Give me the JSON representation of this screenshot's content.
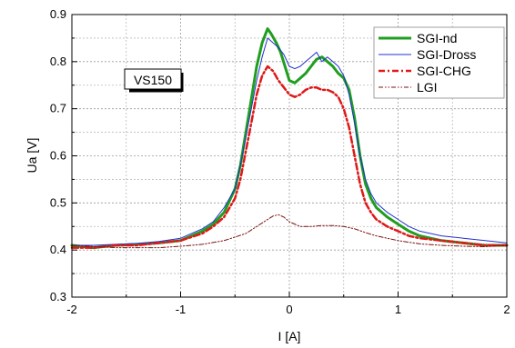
{
  "chart_data": {
    "type": "line",
    "title": "",
    "xlabel": "I [A]",
    "ylabel": "Ua [V]",
    "xlim": [
      -2,
      2
    ],
    "ylim": [
      0.3,
      0.9
    ],
    "xticks": [
      "-2",
      "-1",
      "0",
      "1",
      "2"
    ],
    "yticks": [
      "0.3",
      "0.4",
      "0.5",
      "0.6",
      "0.7",
      "0.8",
      "0.9"
    ],
    "grid": true,
    "legend_position": "top-right",
    "annotation": "VS150",
    "series": [
      {
        "name": "SGI-nd",
        "color": "#1f9e1f",
        "style": "solid-thick",
        "x": [
          -2.0,
          -1.8,
          -1.6,
          -1.4,
          -1.2,
          -1.0,
          -0.8,
          -0.7,
          -0.6,
          -0.5,
          -0.45,
          -0.4,
          -0.35,
          -0.3,
          -0.25,
          -0.2,
          -0.17,
          -0.12,
          -0.08,
          -0.04,
          0.0,
          0.05,
          0.1,
          0.15,
          0.2,
          0.25,
          0.3,
          0.35,
          0.4,
          0.45,
          0.5,
          0.55,
          0.6,
          0.65,
          0.7,
          0.75,
          0.8,
          0.9,
          1.0,
          1.1,
          1.2,
          1.4,
          1.6,
          1.8,
          2.0
        ],
        "y": [
          0.41,
          0.405,
          0.41,
          0.412,
          0.415,
          0.42,
          0.44,
          0.455,
          0.48,
          0.53,
          0.58,
          0.65,
          0.72,
          0.79,
          0.84,
          0.87,
          0.86,
          0.84,
          0.82,
          0.79,
          0.76,
          0.755,
          0.765,
          0.775,
          0.79,
          0.805,
          0.81,
          0.8,
          0.79,
          0.775,
          0.765,
          0.74,
          0.68,
          0.6,
          0.54,
          0.51,
          0.49,
          0.47,
          0.455,
          0.44,
          0.43,
          0.42,
          0.415,
          0.41,
          0.41
        ]
      },
      {
        "name": "SGI-Dross",
        "color": "#2030d0",
        "style": "solid-thin",
        "x": [
          -2.0,
          -1.8,
          -1.6,
          -1.4,
          -1.2,
          -1.0,
          -0.8,
          -0.7,
          -0.6,
          -0.5,
          -0.45,
          -0.4,
          -0.35,
          -0.3,
          -0.25,
          -0.2,
          -0.15,
          -0.1,
          -0.05,
          0.0,
          0.05,
          0.1,
          0.15,
          0.2,
          0.25,
          0.3,
          0.35,
          0.4,
          0.45,
          0.5,
          0.55,
          0.6,
          0.65,
          0.7,
          0.75,
          0.8,
          0.9,
          1.0,
          1.1,
          1.2,
          1.4,
          1.6,
          1.8,
          2.0
        ],
        "y": [
          0.41,
          0.41,
          0.412,
          0.414,
          0.418,
          0.425,
          0.445,
          0.46,
          0.49,
          0.53,
          0.58,
          0.64,
          0.7,
          0.76,
          0.81,
          0.85,
          0.84,
          0.83,
          0.815,
          0.79,
          0.785,
          0.79,
          0.8,
          0.81,
          0.82,
          0.8,
          0.81,
          0.8,
          0.79,
          0.77,
          0.73,
          0.67,
          0.6,
          0.55,
          0.52,
          0.5,
          0.48,
          0.465,
          0.45,
          0.44,
          0.43,
          0.425,
          0.42,
          0.415
        ]
      },
      {
        "name": "SGI-CHG",
        "color": "#e01818",
        "style": "dash-dot",
        "x": [
          -2.0,
          -1.8,
          -1.6,
          -1.4,
          -1.2,
          -1.0,
          -0.8,
          -0.7,
          -0.6,
          -0.5,
          -0.45,
          -0.4,
          -0.35,
          -0.3,
          -0.25,
          -0.2,
          -0.15,
          -0.1,
          -0.05,
          0.0,
          0.05,
          0.1,
          0.15,
          0.2,
          0.25,
          0.3,
          0.35,
          0.4,
          0.45,
          0.5,
          0.55,
          0.6,
          0.65,
          0.7,
          0.75,
          0.8,
          0.9,
          1.0,
          1.1,
          1.2,
          1.4,
          1.6,
          1.8,
          2.0
        ],
        "y": [
          0.405,
          0.405,
          0.41,
          0.41,
          0.415,
          0.42,
          0.435,
          0.45,
          0.47,
          0.51,
          0.55,
          0.61,
          0.67,
          0.73,
          0.77,
          0.79,
          0.78,
          0.76,
          0.745,
          0.73,
          0.725,
          0.73,
          0.74,
          0.745,
          0.745,
          0.74,
          0.74,
          0.735,
          0.725,
          0.7,
          0.66,
          0.6,
          0.54,
          0.5,
          0.48,
          0.465,
          0.45,
          0.44,
          0.43,
          0.425,
          0.42,
          0.415,
          0.41,
          0.41
        ]
      },
      {
        "name": "LGI",
        "color": "#7a1010",
        "style": "dash-dot-dot",
        "x": [
          -2.0,
          -1.6,
          -1.2,
          -1.0,
          -0.8,
          -0.6,
          -0.4,
          -0.3,
          -0.2,
          -0.15,
          -0.1,
          -0.05,
          0.0,
          0.1,
          0.2,
          0.3,
          0.4,
          0.5,
          0.6,
          0.7,
          0.8,
          1.0,
          1.2,
          1.4,
          1.6,
          1.8,
          2.0
        ],
        "y": [
          0.41,
          0.405,
          0.405,
          0.408,
          0.412,
          0.42,
          0.435,
          0.45,
          0.465,
          0.472,
          0.475,
          0.47,
          0.46,
          0.45,
          0.45,
          0.452,
          0.452,
          0.45,
          0.445,
          0.437,
          0.43,
          0.42,
          0.413,
          0.41,
          0.408,
          0.407,
          0.41
        ]
      }
    ]
  }
}
